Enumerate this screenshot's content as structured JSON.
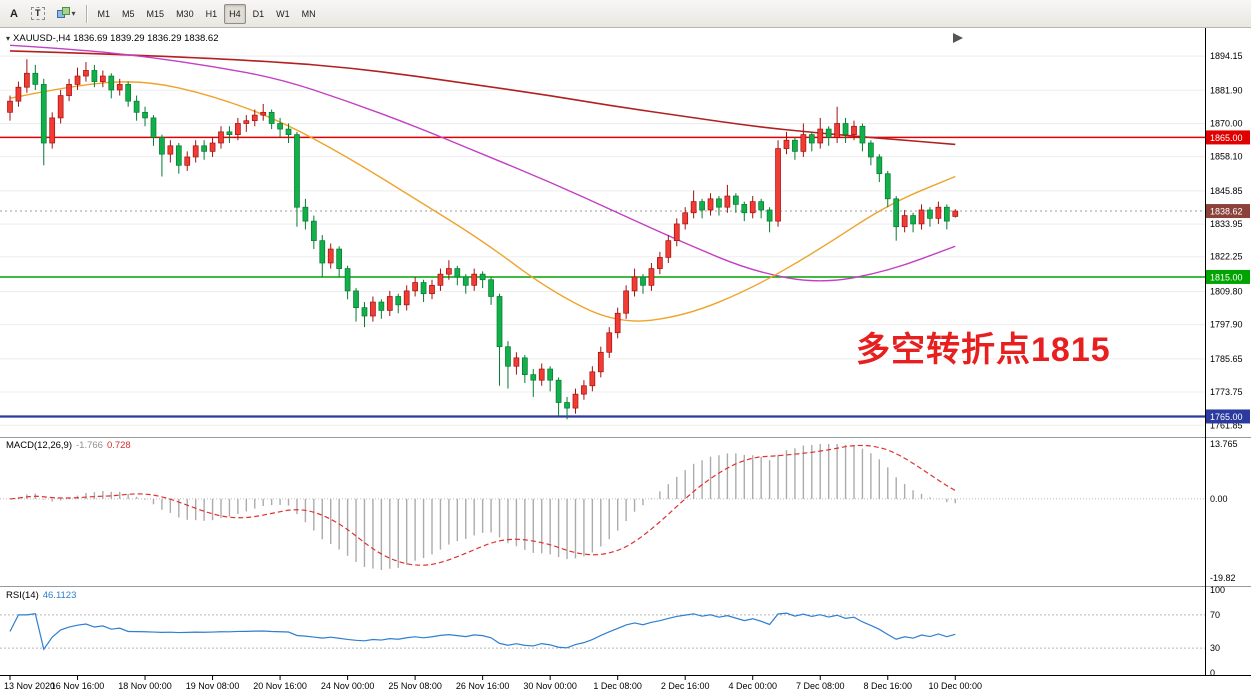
{
  "toolbar": {
    "tools": [
      {
        "label": "A"
      },
      {
        "label": "T"
      }
    ],
    "timeframes": [
      {
        "label": "M1",
        "active": false
      },
      {
        "label": "M5",
        "active": false
      },
      {
        "label": "M15",
        "active": false
      },
      {
        "label": "M30",
        "active": false
      },
      {
        "label": "H1",
        "active": false
      },
      {
        "label": "H4",
        "active": true
      },
      {
        "label": "D1",
        "active": false
      },
      {
        "label": "W1",
        "active": false
      },
      {
        "label": "MN",
        "active": false
      }
    ]
  },
  "chart": {
    "symbol_line": "XAUUSD-,H4  1836.69 1839.29 1836.29 1838.62",
    "macd": {
      "name": "MACD(12,26,9)",
      "main_value": "-1.766",
      "signal_value": "0.728"
    },
    "rsi": {
      "name": "RSI(14)",
      "value": "46.1123"
    }
  },
  "chart_data": {
    "type": "candlestick",
    "symbol": "XAUUSD-",
    "timeframe": "H4",
    "last_ohlc": {
      "open": "1836.69",
      "high": "1839.29",
      "low": "1836.29",
      "close": "1838.62"
    },
    "colors": {
      "up": "#f23b33",
      "up_stroke": "#a11010",
      "down": "#11b04b",
      "down_stroke": "#067a31",
      "background": "#ffffff"
    },
    "price_axis": {
      "min": 1758,
      "max": 1903.5,
      "ticks": [
        "1894.15",
        "1881.90",
        "1870.00",
        "1858.10",
        "1845.85",
        "1833.95",
        "1822.25",
        "1809.80",
        "1797.90",
        "1785.65",
        "1773.75",
        "1761.85"
      ]
    },
    "x_labels": [
      "13 Nov 2020",
      "16 Nov 16:00",
      "18 Nov 00:00",
      "19 Nov 08:00",
      "20 Nov 16:00",
      "24 Nov 00:00",
      "25 Nov 08:00",
      "26 Nov 16:00",
      "30 Nov 00:00",
      "1 Dec 08:00",
      "2 Dec 16:00",
      "4 Dec 00:00",
      "7 Dec 08:00",
      "8 Dec 16:00",
      "10 Dec 00:00"
    ],
    "bars_per_label": 8,
    "candles": [
      [
        1874,
        1880,
        1871,
        1878
      ],
      [
        1878,
        1885,
        1876,
        1883
      ],
      [
        1883,
        1893,
        1881,
        1888
      ],
      [
        1888,
        1891,
        1882,
        1884
      ],
      [
        1884,
        1886,
        1855,
        1863
      ],
      [
        1863,
        1874,
        1861,
        1872
      ],
      [
        1872,
        1882,
        1870,
        1880
      ],
      [
        1880,
        1886,
        1878,
        1884
      ],
      [
        1884,
        1890,
        1882,
        1887
      ],
      [
        1887,
        1892,
        1885,
        1889
      ],
      [
        1889,
        1891,
        1883,
        1885
      ],
      [
        1885,
        1889,
        1883,
        1887
      ],
      [
        1887,
        1888,
        1879,
        1882
      ],
      [
        1882,
        1886,
        1880,
        1884
      ],
      [
        1884,
        1885,
        1876,
        1878
      ],
      [
        1878,
        1880,
        1871,
        1874
      ],
      [
        1874,
        1876,
        1869,
        1872
      ],
      [
        1872,
        1873,
        1862,
        1865
      ],
      [
        1865,
        1866,
        1851,
        1859
      ],
      [
        1859,
        1864,
        1856,
        1862
      ],
      [
        1862,
        1863,
        1852,
        1855
      ],
      [
        1855,
        1860,
        1853,
        1858
      ],
      [
        1858,
        1864,
        1856,
        1862
      ],
      [
        1862,
        1864,
        1857,
        1860
      ],
      [
        1860,
        1865,
        1858,
        1863
      ],
      [
        1863,
        1869,
        1861,
        1867
      ],
      [
        1867,
        1869,
        1863,
        1866
      ],
      [
        1866,
        1872,
        1864,
        1870
      ],
      [
        1870,
        1873,
        1867,
        1871
      ],
      [
        1871,
        1875,
        1869,
        1873
      ],
      [
        1873,
        1877,
        1871,
        1874
      ],
      [
        1874,
        1875,
        1868,
        1870
      ],
      [
        1870,
        1872,
        1865,
        1868
      ],
      [
        1868,
        1870,
        1863,
        1866
      ],
      [
        1866,
        1867,
        1833,
        1840
      ],
      [
        1840,
        1843,
        1832,
        1835
      ],
      [
        1835,
        1837,
        1825,
        1828
      ],
      [
        1828,
        1830,
        1815,
        1820
      ],
      [
        1820,
        1827,
        1818,
        1825
      ],
      [
        1825,
        1826,
        1815,
        1818
      ],
      [
        1818,
        1819,
        1807,
        1810
      ],
      [
        1810,
        1811,
        1799,
        1804
      ],
      [
        1804,
        1806,
        1797,
        1801
      ],
      [
        1801,
        1808,
        1799,
        1806
      ],
      [
        1806,
        1807,
        1800,
        1803
      ],
      [
        1803,
        1810,
        1801,
        1808
      ],
      [
        1808,
        1809,
        1802,
        1805
      ],
      [
        1805,
        1812,
        1803,
        1810
      ],
      [
        1810,
        1815,
        1808,
        1813
      ],
      [
        1813,
        1814,
        1806,
        1809
      ],
      [
        1809,
        1814,
        1807,
        1812
      ],
      [
        1812,
        1818,
        1810,
        1816
      ],
      [
        1816,
        1821,
        1814,
        1818
      ],
      [
        1818,
        1819,
        1812,
        1815
      ],
      [
        1815,
        1816,
        1809,
        1812
      ],
      [
        1812,
        1818,
        1810,
        1816
      ],
      [
        1816,
        1817,
        1811,
        1814
      ],
      [
        1814,
        1815,
        1805,
        1808
      ],
      [
        1808,
        1809,
        1776,
        1790
      ],
      [
        1790,
        1792,
        1775,
        1783
      ],
      [
        1783,
        1788,
        1780,
        1786
      ],
      [
        1786,
        1787,
        1777,
        1780
      ],
      [
        1780,
        1782,
        1772,
        1778
      ],
      [
        1778,
        1784,
        1776,
        1782
      ],
      [
        1782,
        1783,
        1774,
        1778
      ],
      [
        1778,
        1779,
        1765,
        1770
      ],
      [
        1770,
        1772,
        1764,
        1768
      ],
      [
        1768,
        1775,
        1766,
        1773
      ],
      [
        1773,
        1778,
        1771,
        1776
      ],
      [
        1776,
        1783,
        1774,
        1781
      ],
      [
        1781,
        1790,
        1779,
        1788
      ],
      [
        1788,
        1797,
        1786,
        1795
      ],
      [
        1795,
        1804,
        1793,
        1802
      ],
      [
        1802,
        1812,
        1800,
        1810
      ],
      [
        1810,
        1818,
        1808,
        1815
      ],
      [
        1815,
        1816,
        1809,
        1812
      ],
      [
        1812,
        1820,
        1810,
        1818
      ],
      [
        1818,
        1824,
        1816,
        1822
      ],
      [
        1822,
        1830,
        1820,
        1828
      ],
      [
        1828,
        1836,
        1826,
        1834
      ],
      [
        1834,
        1840,
        1832,
        1838
      ],
      [
        1838,
        1846,
        1836,
        1842
      ],
      [
        1842,
        1843,
        1836,
        1839
      ],
      [
        1839,
        1845,
        1837,
        1843
      ],
      [
        1843,
        1844,
        1837,
        1840
      ],
      [
        1840,
        1848,
        1838,
        1844
      ],
      [
        1844,
        1845,
        1838,
        1841
      ],
      [
        1841,
        1842,
        1835,
        1838
      ],
      [
        1838,
        1844,
        1836,
        1842
      ],
      [
        1842,
        1843,
        1836,
        1839
      ],
      [
        1839,
        1840,
        1831,
        1835
      ],
      [
        1835,
        1864,
        1833,
        1861
      ],
      [
        1861,
        1867,
        1859,
        1864
      ],
      [
        1864,
        1865,
        1857,
        1860
      ],
      [
        1860,
        1870,
        1858,
        1866
      ],
      [
        1866,
        1867,
        1860,
        1863
      ],
      [
        1863,
        1872,
        1861,
        1868
      ],
      [
        1868,
        1869,
        1862,
        1865
      ],
      [
        1865,
        1876,
        1863,
        1870
      ],
      [
        1870,
        1872,
        1863,
        1866
      ],
      [
        1866,
        1871,
        1864,
        1869
      ],
      [
        1869,
        1870,
        1860,
        1863
      ],
      [
        1863,
        1864,
        1855,
        1858
      ],
      [
        1858,
        1859,
        1849,
        1852
      ],
      [
        1852,
        1853,
        1840,
        1843
      ],
      [
        1843,
        1844,
        1828,
        1833
      ],
      [
        1833,
        1839,
        1831,
        1837
      ],
      [
        1837,
        1838,
        1831,
        1834
      ],
      [
        1834,
        1841,
        1832,
        1839
      ],
      [
        1839,
        1840,
        1833,
        1836
      ],
      [
        1836,
        1842,
        1834,
        1840
      ],
      [
        1840,
        1841,
        1832,
        1835
      ],
      [
        1836.69,
        1839.29,
        1836.29,
        1838.62
      ]
    ],
    "moving_averages": [
      {
        "name": "ma-slow",
        "color": "#b22020",
        "width": 1.6,
        "points": [
          [
            0,
            1896
          ],
          [
            16,
            1894.5
          ],
          [
            32,
            1892
          ],
          [
            40,
            1890
          ],
          [
            48,
            1887
          ],
          [
            56,
            1883.5
          ],
          [
            64,
            1880
          ],
          [
            72,
            1876
          ],
          [
            80,
            1872.5
          ],
          [
            88,
            1869
          ],
          [
            96,
            1866.5
          ],
          [
            104,
            1864.5
          ],
          [
            112,
            1862.5
          ]
        ]
      },
      {
        "name": "ma-mid",
        "color": "#c33fc3",
        "width": 1.4,
        "points": [
          [
            0,
            1898
          ],
          [
            8,
            1896.5
          ],
          [
            16,
            1894
          ],
          [
            24,
            1890.5
          ],
          [
            32,
            1886
          ],
          [
            40,
            1878
          ],
          [
            48,
            1869
          ],
          [
            56,
            1859
          ],
          [
            64,
            1849
          ],
          [
            72,
            1838
          ],
          [
            80,
            1827
          ],
          [
            88,
            1817
          ],
          [
            96,
            1812.5
          ],
          [
            104,
            1817
          ],
          [
            112,
            1826
          ]
        ]
      },
      {
        "name": "ma-fast",
        "color": "#efa32a",
        "width": 1.4,
        "points": [
          [
            0,
            1879
          ],
          [
            8,
            1884
          ],
          [
            16,
            1885.5
          ],
          [
            24,
            1880
          ],
          [
            32,
            1871
          ],
          [
            40,
            1858
          ],
          [
            48,
            1843
          ],
          [
            56,
            1828
          ],
          [
            64,
            1810
          ],
          [
            72,
            1798
          ],
          [
            80,
            1801
          ],
          [
            88,
            1811
          ],
          [
            96,
            1825
          ],
          [
            104,
            1841
          ],
          [
            112,
            1851
          ]
        ]
      }
    ],
    "hlines": [
      {
        "price": 1865.0,
        "label": "1865.00",
        "color": "#e00000",
        "width": 1.5
      },
      {
        "price": 1815.0,
        "label": "1815.00",
        "color": "#00a400",
        "width": 1.5
      },
      {
        "price": 1765.0,
        "label": "1765.00",
        "color": "#2b3a9e",
        "width": 2.2
      }
    ],
    "price_line": {
      "price": 1838.62,
      "label": "1838.62",
      "line_color": "#9a9a9a",
      "badge_color": "#8a423a"
    },
    "annotation": {
      "text": "多空转折点1815",
      "color": "#e81f1f"
    },
    "indicators": {
      "macd": {
        "label": "MACD(12,26,9)",
        "params": [
          12,
          26,
          9
        ],
        "main_value": -1.766,
        "signal_value": 0.728,
        "axis_ticks": [
          "13.765",
          "0.00",
          "-19.82"
        ],
        "max": 13.765,
        "min": -19.82,
        "hist_color": "#ababab",
        "signal_color": "#e03030"
      },
      "rsi": {
        "label": "RSI(14)",
        "period": 14,
        "value": 46.1123,
        "levels": [
          70,
          30
        ],
        "axis_ticks": [
          "100",
          "70",
          "30",
          "0"
        ],
        "color": "#2e7fd0"
      }
    }
  }
}
